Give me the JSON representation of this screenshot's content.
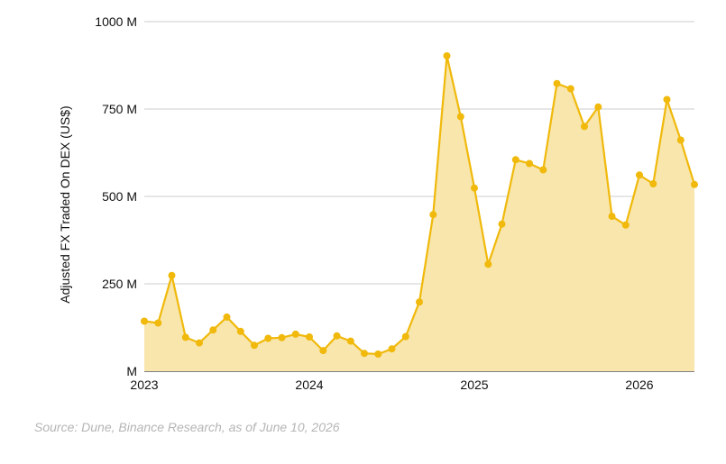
{
  "chart_data": {
    "type": "area",
    "xlabel": "",
    "ylabel": "Adjusted FX Traded On DEX (US$)",
    "ylim": [
      0,
      1000000000
    ],
    "xlim": [
      "2023-01",
      "2026-05"
    ],
    "y_ticks": [
      {
        "value": 0,
        "label": "M"
      },
      {
        "value": 250000000,
        "label": "250 M"
      },
      {
        "value": 500000000,
        "label": "500 M"
      },
      {
        "value": 750000000,
        "label": "750 M"
      },
      {
        "value": 1000000000,
        "label": "1000 M"
      }
    ],
    "x_ticks": [
      {
        "value": "2023-01",
        "label": "2023"
      },
      {
        "value": "2024-01",
        "label": "2024"
      },
      {
        "value": "2025-01",
        "label": "2025"
      },
      {
        "value": "2026-01",
        "label": "2026"
      }
    ],
    "grid": "horizontal",
    "legend": "none",
    "line_color": "#F0B90B",
    "fill_color": "#F8E6AC",
    "grid_color": "#cccccc",
    "series": [
      {
        "x": [
          "2023-01",
          "2023-02",
          "2023-03",
          "2023-04",
          "2023-05",
          "2023-06",
          "2023-07",
          "2023-08",
          "2023-09",
          "2023-10",
          "2023-11",
          "2023-12",
          "2024-01",
          "2024-02",
          "2024-03",
          "2024-04",
          "2024-05",
          "2024-06",
          "2024-07",
          "2024-08",
          "2024-09",
          "2024-10",
          "2024-11",
          "2024-12",
          "2025-01",
          "2025-02",
          "2025-03",
          "2025-04",
          "2025-05",
          "2025-06",
          "2025-07",
          "2025-08",
          "2025-09",
          "2025-10",
          "2025-11",
          "2025-12",
          "2026-01",
          "2026-02",
          "2026-03",
          "2026-04",
          "2026-05"
        ],
        "values": [
          143000000,
          138000000,
          274000000,
          97000000,
          81000000,
          118000000,
          155000000,
          114000000,
          74000000,
          94000000,
          96000000,
          106000000,
          98000000,
          59000000,
          101000000,
          86000000,
          51000000,
          49000000,
          64000000,
          99000000,
          198000000,
          448000000,
          902000000,
          728000000,
          524000000,
          306000000,
          421000000,
          605000000,
          594000000,
          576000000,
          823000000,
          808000000,
          700000000,
          756000000,
          443000000,
          418000000,
          561000000,
          536000000,
          777000000,
          661000000,
          534000000
        ]
      }
    ]
  },
  "footer": {
    "source": "Source: Dune, Binance Research, as of June 10, 2026"
  }
}
